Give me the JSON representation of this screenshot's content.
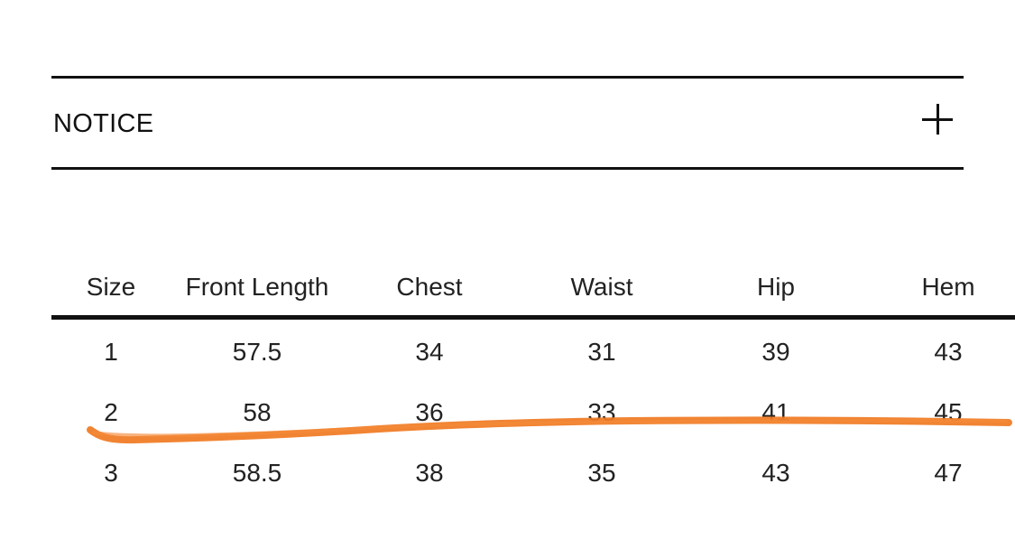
{
  "notice": {
    "title": "NOTICE",
    "toggle_icon": "plus-icon"
  },
  "size_table": {
    "headers": [
      "Size",
      "Front Length",
      "Chest",
      "Waist",
      "Hip",
      "Hem"
    ],
    "rows": [
      [
        "1",
        "57.5",
        "34",
        "31",
        "39",
        "43"
      ],
      [
        "2",
        "58",
        "36",
        "33",
        "41",
        "45"
      ],
      [
        "3",
        "58.5",
        "38",
        "35",
        "43",
        "47"
      ]
    ]
  },
  "colors": {
    "rule": "#111111",
    "text": "#222222",
    "scribble": "#f07a22"
  }
}
